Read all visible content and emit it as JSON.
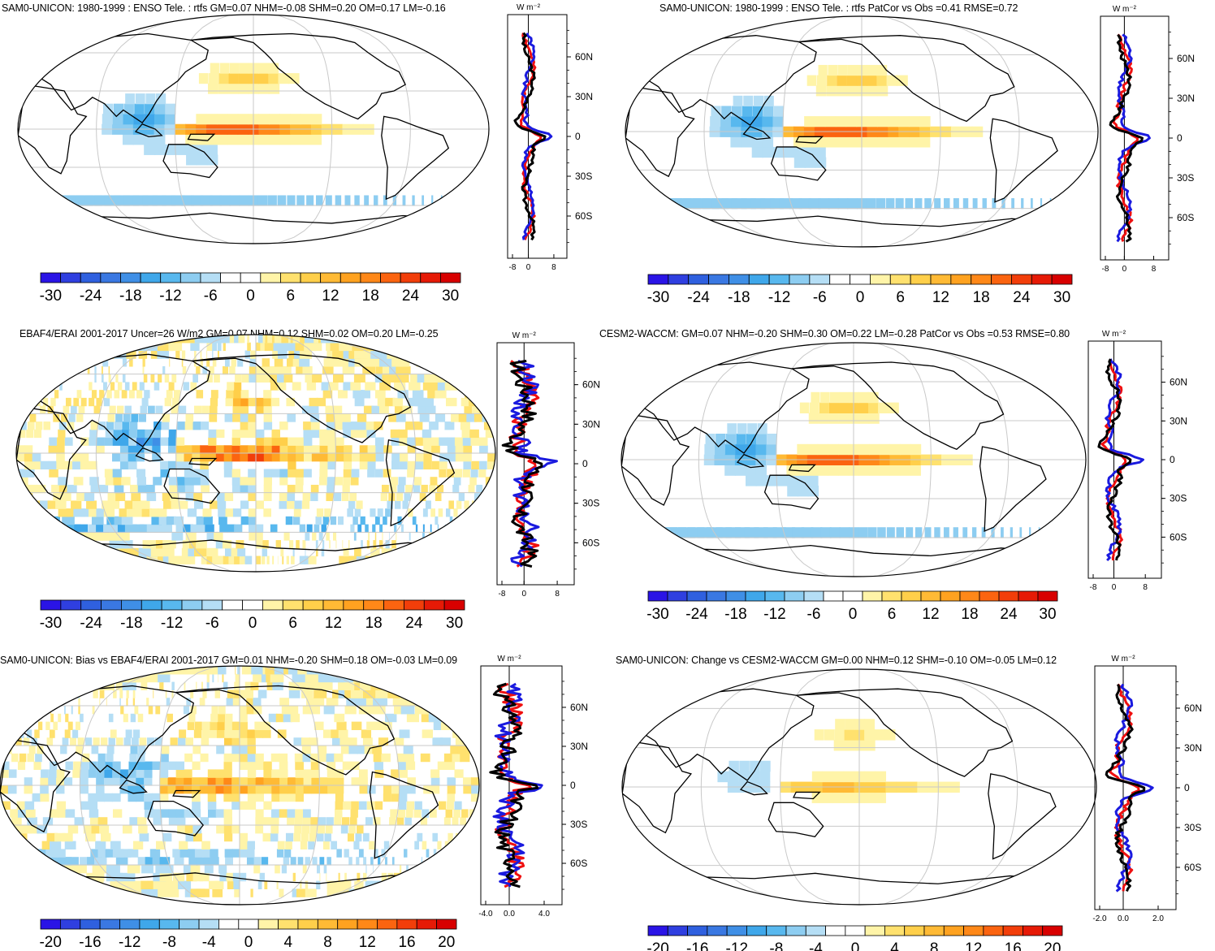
{
  "panels": [
    {
      "title": "SAM0-UNICON: 1980-1999 : ENSO Tele. : rtfs GM=0.07 NHM=-0.08 SHM=0.20 OM=0.17 LM=-0.16",
      "colorbar_labels": [
        "-30",
        "-24",
        "-18",
        "-12",
        "-6",
        "0",
        "6",
        "12",
        "18",
        "24",
        "30"
      ],
      "profile_unit": "W m⁻²",
      "profile_xticks": [
        "-8",
        "0",
        "8"
      ],
      "lat_ticks": [
        "60N",
        "30N",
        "0",
        "30S",
        "60S"
      ]
    },
    {
      "title": "SAM0-UNICON: 1980-1999 : ENSO Tele. : rtfs PatCor vs Obs =0.41 RMSE=0.72",
      "colorbar_labels": [
        "-30",
        "-24",
        "-18",
        "-12",
        "-6",
        "0",
        "6",
        "12",
        "18",
        "24",
        "30"
      ],
      "profile_unit": "W m⁻²",
      "profile_xticks": [
        "-8",
        "0",
        "8"
      ],
      "lat_ticks": [
        "60N",
        "30N",
        "0",
        "30S",
        "60S"
      ]
    },
    {
      "title": "EBAF4/ERAI 2001-2017 Uncer=26 W/m2 GM=0.07 NHM=0.12 SHM=0.02 OM=0.20 LM=-0.25",
      "colorbar_labels": [
        "-30",
        "-24",
        "-18",
        "-12",
        "-6",
        "0",
        "6",
        "12",
        "18",
        "24",
        "30"
      ],
      "profile_unit": "W m⁻²",
      "profile_xticks": [
        "-8",
        "0",
        "8"
      ],
      "lat_ticks": [
        "60N",
        "30N",
        "0",
        "30S",
        "60S"
      ]
    },
    {
      "title": "CESM2-WACCM: GM=0.07 NHM=-0.20 SHM=0.30 OM=0.22 LM=-0.28 PatCor vs Obs =0.53 RMSE=0.80",
      "colorbar_labels": [
        "-30",
        "-24",
        "-18",
        "-12",
        "-6",
        "0",
        "6",
        "12",
        "18",
        "24",
        "30"
      ],
      "profile_unit": "W m⁻²",
      "profile_xticks": [
        "-8",
        "0",
        "8"
      ],
      "lat_ticks": [
        "60N",
        "30N",
        "0",
        "30S",
        "60S"
      ]
    },
    {
      "title": "SAM0-UNICON: Bias vs EBAF4/ERAI 2001-2017 GM=0.01 NHM=-0.20 SHM=0.18 OM=-0.03 LM=0.09",
      "colorbar_labels": [
        "-20",
        "-16",
        "-12",
        "-8",
        "-4",
        "0",
        "4",
        "8",
        "12",
        "16",
        "20"
      ],
      "profile_unit": "W m⁻²",
      "profile_xticks": [
        "-4.0",
        "0.0",
        "4.0"
      ],
      "lat_ticks": [
        "60N",
        "30N",
        "0",
        "30S",
        "60S"
      ]
    },
    {
      "title": "SAM0-UNICON: Change vs CESM2-WACCM GM=0.00 NHM=0.12 SHM=-0.10 OM=-0.05 LM=0.12",
      "colorbar_labels": [
        "-20",
        "-16",
        "-12",
        "-8",
        "-4",
        "0",
        "4",
        "8",
        "12",
        "16",
        "20"
      ],
      "profile_unit": "W m⁻²",
      "profile_xticks": [
        "-2.0",
        "0.0",
        "2.0"
      ],
      "lat_ticks": [
        "60N",
        "30N",
        "0",
        "30S",
        "60S"
      ]
    }
  ],
  "colors": {
    "palette": [
      "#2a14e6",
      "#2f3fe0",
      "#2f60df",
      "#3a78e2",
      "#3f8fe6",
      "#3fa7ea",
      "#58b8ee",
      "#8dcdf1",
      "#b5def5",
      "#ffffff",
      "#ffffff",
      "#fff4a8",
      "#ffe16e",
      "#ffcf4a",
      "#ffba35",
      "#ffa220",
      "#ff8818",
      "#fb6410",
      "#f23e0a",
      "#e61a06",
      "#d80000"
    ],
    "profile_blue": "#1a1adf",
    "profile_red": "#ef1010",
    "profile_black": "#000000",
    "grid": "#c9c9c9"
  }
}
